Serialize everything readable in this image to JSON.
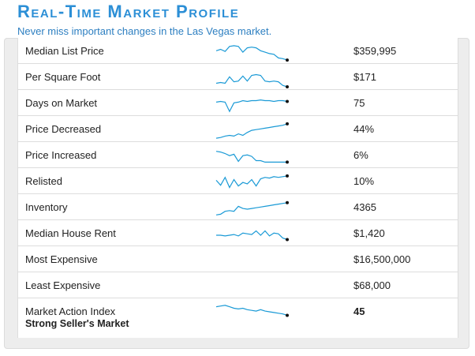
{
  "header": {
    "title": "Real-Time Market Profile",
    "subtitle": "Never miss important changes in the Las Vegas market."
  },
  "colors": {
    "title": "#2c8fd6",
    "sparkline": "#1a9ad6",
    "endpoint": "#111111"
  },
  "rows": [
    {
      "label": "Median List Price",
      "value": "$359,995",
      "sparkline": [
        8,
        6,
        9,
        2,
        1,
        2,
        10,
        4,
        3,
        4,
        8,
        10,
        12,
        13,
        18,
        19,
        21
      ]
    },
    {
      "label": "Per Square Foot",
      "value": "$171",
      "sparkline": [
        17,
        16,
        17,
        8,
        15,
        14,
        7,
        14,
        6,
        5,
        6,
        14,
        15,
        14,
        15,
        20,
        22
      ]
    },
    {
      "label": "Days on Market",
      "value": "75",
      "sparkline": [
        7,
        6,
        7,
        20,
        8,
        7,
        5,
        6,
        5,
        5,
        4,
        5,
        5,
        6,
        5,
        5,
        6
      ]
    },
    {
      "label": "Price Decreased",
      "value": "44%",
      "sparkline": [
        21,
        20,
        18,
        17,
        18,
        15,
        17,
        13,
        10,
        9,
        8,
        7,
        6,
        5,
        4,
        3,
        1
      ]
    },
    {
      "label": "Price Increased",
      "value": "6%",
      "sparkline": [
        3,
        4,
        6,
        9,
        7,
        17,
        9,
        8,
        10,
        16,
        16,
        18,
        18,
        18,
        18,
        18,
        18
      ]
    },
    {
      "label": "Relisted",
      "value": "10%",
      "sparkline": [
        7,
        14,
        3,
        17,
        6,
        15,
        10,
        12,
        6,
        15,
        5,
        3,
        4,
        2,
        3,
        2,
        1
      ]
    },
    {
      "label": "Inventory",
      "value": "4365",
      "sparkline": [
        19,
        18,
        14,
        13,
        14,
        7,
        10,
        11,
        10,
        9,
        8,
        7,
        6,
        5,
        4,
        3,
        2
      ]
    },
    {
      "label": "Median House Rent",
      "value": "$1,420",
      "sparkline": [
        11,
        11,
        12,
        11,
        10,
        12,
        8,
        9,
        10,
        5,
        11,
        5,
        12,
        8,
        9,
        15,
        17
      ]
    },
    {
      "label": "Most Expensive",
      "value": "$16,500,000"
    },
    {
      "label": "Least Expensive",
      "value": "$68,000"
    },
    {
      "label": "Market Action Index",
      "sublabel": "Strong Seller's Market",
      "value": "45",
      "sparkline": [
        4,
        3,
        2,
        4,
        6,
        7,
        6,
        8,
        9,
        10,
        8,
        10,
        11,
        12,
        13,
        14,
        16
      ]
    }
  ]
}
